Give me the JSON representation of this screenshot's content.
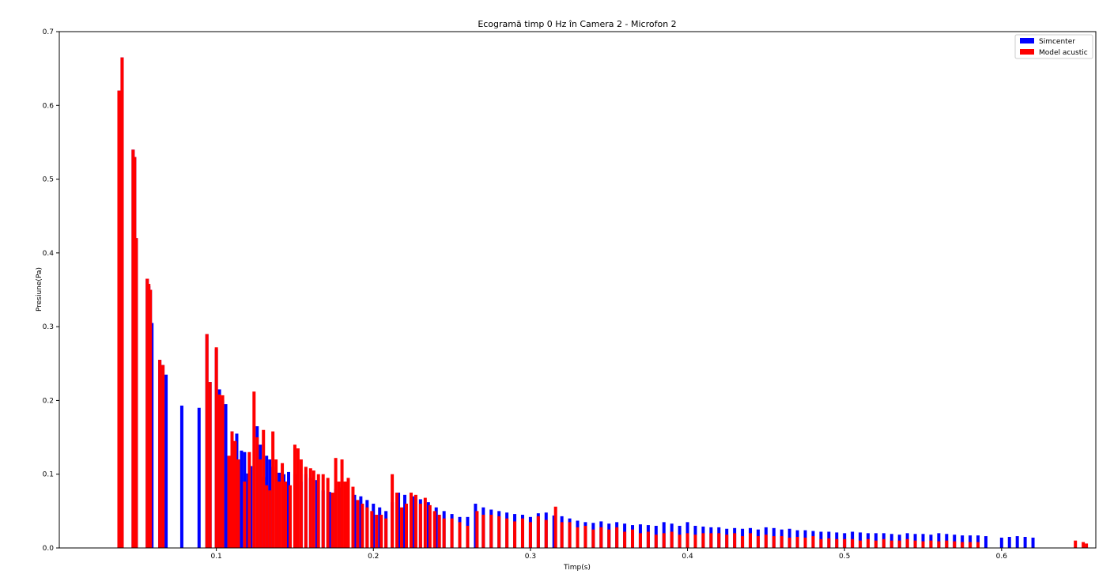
{
  "chart_data": {
    "type": "bar",
    "title": "Ecogramă timp 0 Hz în Camera 2 - Microfon 2",
    "xlabel": "Timp(s)",
    "ylabel": "Presiune(Pa)",
    "xlim": [
      0.0,
      0.66
    ],
    "ylim": [
      0.0,
      0.7
    ],
    "xticks": [
      "0.1",
      "0.2",
      "0.3",
      "0.4",
      "0.5",
      "0.6"
    ],
    "yticks": [
      "0.0",
      "0.1",
      "0.2",
      "0.3",
      "0.4",
      "0.5",
      "0.6",
      "0.7"
    ],
    "grid": false,
    "legend_position": "top-right",
    "series": [
      {
        "name": "Simcenter",
        "color": "#0000ff",
        "points": [
          [
            0.038,
            0.62
          ],
          [
            0.04,
            0.665
          ],
          [
            0.047,
            0.54
          ],
          [
            0.048,
            0.53
          ],
          [
            0.049,
            0.42
          ],
          [
            0.056,
            0.365
          ],
          [
            0.057,
            0.355
          ],
          [
            0.058,
            0.35
          ],
          [
            0.059,
            0.305
          ],
          [
            0.064,
            0.255
          ],
          [
            0.066,
            0.248
          ],
          [
            0.068,
            0.235
          ],
          [
            0.078,
            0.193
          ],
          [
            0.089,
            0.19
          ],
          [
            0.094,
            0.29
          ],
          [
            0.096,
            0.225
          ],
          [
            0.1,
            0.27
          ],
          [
            0.102,
            0.215
          ],
          [
            0.104,
            0.2
          ],
          [
            0.106,
            0.195
          ],
          [
            0.11,
            0.158
          ],
          [
            0.113,
            0.155
          ],
          [
            0.116,
            0.132
          ],
          [
            0.118,
            0.13
          ],
          [
            0.12,
            0.101
          ],
          [
            0.122,
            0.111
          ],
          [
            0.126,
            0.165
          ],
          [
            0.128,
            0.14
          ],
          [
            0.13,
            0.096
          ],
          [
            0.132,
            0.125
          ],
          [
            0.134,
            0.12
          ],
          [
            0.136,
            0.11
          ],
          [
            0.14,
            0.102
          ],
          [
            0.143,
            0.1
          ],
          [
            0.146,
            0.103
          ],
          [
            0.15,
            0.1
          ],
          [
            0.154,
            0.09
          ],
          [
            0.157,
            0.1
          ],
          [
            0.16,
            0.095
          ],
          [
            0.164,
            0.092
          ],
          [
            0.168,
            0.078
          ],
          [
            0.172,
            0.076
          ],
          [
            0.176,
            0.08
          ],
          [
            0.18,
            0.082
          ],
          [
            0.184,
            0.078
          ],
          [
            0.188,
            0.072
          ],
          [
            0.192,
            0.07
          ],
          [
            0.196,
            0.065
          ],
          [
            0.2,
            0.06
          ],
          [
            0.204,
            0.055
          ],
          [
            0.208,
            0.05
          ],
          [
            0.212,
            0.062
          ],
          [
            0.216,
            0.075
          ],
          [
            0.22,
            0.072
          ],
          [
            0.225,
            0.07
          ],
          [
            0.23,
            0.066
          ],
          [
            0.235,
            0.062
          ],
          [
            0.24,
            0.055
          ],
          [
            0.245,
            0.05
          ],
          [
            0.25,
            0.046
          ],
          [
            0.255,
            0.042
          ],
          [
            0.26,
            0.042
          ],
          [
            0.265,
            0.06
          ],
          [
            0.27,
            0.055
          ],
          [
            0.275,
            0.052
          ],
          [
            0.28,
            0.05
          ],
          [
            0.285,
            0.048
          ],
          [
            0.29,
            0.046
          ],
          [
            0.295,
            0.045
          ],
          [
            0.3,
            0.042
          ],
          [
            0.305,
            0.047
          ],
          [
            0.31,
            0.048
          ],
          [
            0.315,
            0.044
          ],
          [
            0.32,
            0.043
          ],
          [
            0.325,
            0.04
          ],
          [
            0.33,
            0.037
          ],
          [
            0.335,
            0.035
          ],
          [
            0.34,
            0.034
          ],
          [
            0.345,
            0.036
          ],
          [
            0.35,
            0.033
          ],
          [
            0.355,
            0.035
          ],
          [
            0.36,
            0.033
          ],
          [
            0.365,
            0.031
          ],
          [
            0.37,
            0.032
          ],
          [
            0.375,
            0.031
          ],
          [
            0.38,
            0.03
          ],
          [
            0.385,
            0.035
          ],
          [
            0.39,
            0.033
          ],
          [
            0.395,
            0.03
          ],
          [
            0.4,
            0.035
          ],
          [
            0.405,
            0.03
          ],
          [
            0.41,
            0.029
          ],
          [
            0.415,
            0.028
          ],
          [
            0.42,
            0.028
          ],
          [
            0.425,
            0.026
          ],
          [
            0.43,
            0.027
          ],
          [
            0.435,
            0.026
          ],
          [
            0.44,
            0.027
          ],
          [
            0.445,
            0.025
          ],
          [
            0.45,
            0.028
          ],
          [
            0.455,
            0.027
          ],
          [
            0.46,
            0.025
          ],
          [
            0.465,
            0.026
          ],
          [
            0.47,
            0.024
          ],
          [
            0.475,
            0.024
          ],
          [
            0.48,
            0.023
          ],
          [
            0.485,
            0.022
          ],
          [
            0.49,
            0.022
          ],
          [
            0.495,
            0.021
          ],
          [
            0.5,
            0.02
          ],
          [
            0.505,
            0.022
          ],
          [
            0.51,
            0.021
          ],
          [
            0.515,
            0.02
          ],
          [
            0.52,
            0.02
          ],
          [
            0.525,
            0.02
          ],
          [
            0.53,
            0.019
          ],
          [
            0.535,
            0.018
          ],
          [
            0.54,
            0.02
          ],
          [
            0.545,
            0.019
          ],
          [
            0.55,
            0.019
          ],
          [
            0.555,
            0.018
          ],
          [
            0.56,
            0.02
          ],
          [
            0.565,
            0.019
          ],
          [
            0.57,
            0.018
          ],
          [
            0.575,
            0.017
          ],
          [
            0.58,
            0.017
          ],
          [
            0.585,
            0.017
          ],
          [
            0.59,
            0.016
          ],
          [
            0.6,
            0.014
          ],
          [
            0.605,
            0.015
          ],
          [
            0.61,
            0.016
          ],
          [
            0.615,
            0.015
          ],
          [
            0.62,
            0.014
          ]
        ]
      },
      {
        "name": "Model acustic",
        "color": "#ff0000",
        "points": [
          [
            0.038,
            0.62
          ],
          [
            0.04,
            0.665
          ],
          [
            0.047,
            0.54
          ],
          [
            0.048,
            0.53
          ],
          [
            0.049,
            0.42
          ],
          [
            0.056,
            0.365
          ],
          [
            0.057,
            0.358
          ],
          [
            0.058,
            0.35
          ],
          [
            0.064,
            0.255
          ],
          [
            0.066,
            0.248
          ],
          [
            0.094,
            0.29
          ],
          [
            0.096,
            0.225
          ],
          [
            0.1,
            0.272
          ],
          [
            0.102,
            0.208
          ],
          [
            0.104,
            0.207
          ],
          [
            0.108,
            0.125
          ],
          [
            0.11,
            0.158
          ],
          [
            0.112,
            0.145
          ],
          [
            0.114,
            0.12
          ],
          [
            0.118,
            0.09
          ],
          [
            0.121,
            0.13
          ],
          [
            0.124,
            0.212
          ],
          [
            0.126,
            0.15
          ],
          [
            0.128,
            0.12
          ],
          [
            0.13,
            0.16
          ],
          [
            0.132,
            0.085
          ],
          [
            0.134,
            0.078
          ],
          [
            0.136,
            0.158
          ],
          [
            0.138,
            0.12
          ],
          [
            0.14,
            0.09
          ],
          [
            0.142,
            0.115
          ],
          [
            0.144,
            0.09
          ],
          [
            0.147,
            0.085
          ],
          [
            0.15,
            0.14
          ],
          [
            0.152,
            0.135
          ],
          [
            0.154,
            0.12
          ],
          [
            0.157,
            0.11
          ],
          [
            0.16,
            0.108
          ],
          [
            0.162,
            0.105
          ],
          [
            0.165,
            0.1
          ],
          [
            0.168,
            0.1
          ],
          [
            0.171,
            0.095
          ],
          [
            0.174,
            0.075
          ],
          [
            0.176,
            0.122
          ],
          [
            0.178,
            0.09
          ],
          [
            0.18,
            0.12
          ],
          [
            0.182,
            0.09
          ],
          [
            0.184,
            0.095
          ],
          [
            0.187,
            0.083
          ],
          [
            0.19,
            0.065
          ],
          [
            0.193,
            0.06
          ],
          [
            0.196,
            0.055
          ],
          [
            0.199,
            0.05
          ],
          [
            0.202,
            0.045
          ],
          [
            0.205,
            0.045
          ],
          [
            0.208,
            0.04
          ],
          [
            0.212,
            0.1
          ],
          [
            0.215,
            0.075
          ],
          [
            0.218,
            0.055
          ],
          [
            0.221,
            0.06
          ],
          [
            0.224,
            0.075
          ],
          [
            0.227,
            0.072
          ],
          [
            0.23,
            0.06
          ],
          [
            0.233,
            0.068
          ],
          [
            0.236,
            0.058
          ],
          [
            0.239,
            0.05
          ],
          [
            0.242,
            0.045
          ],
          [
            0.245,
            0.04
          ],
          [
            0.25,
            0.04
          ],
          [
            0.255,
            0.035
          ],
          [
            0.26,
            0.03
          ],
          [
            0.266,
            0.05
          ],
          [
            0.27,
            0.045
          ],
          [
            0.275,
            0.045
          ],
          [
            0.28,
            0.043
          ],
          [
            0.285,
            0.04
          ],
          [
            0.29,
            0.036
          ],
          [
            0.295,
            0.04
          ],
          [
            0.3,
            0.035
          ],
          [
            0.305,
            0.043
          ],
          [
            0.31,
            0.038
          ],
          [
            0.316,
            0.056
          ],
          [
            0.32,
            0.035
          ],
          [
            0.325,
            0.035
          ],
          [
            0.33,
            0.028
          ],
          [
            0.335,
            0.03
          ],
          [
            0.34,
            0.025
          ],
          [
            0.345,
            0.028
          ],
          [
            0.35,
            0.025
          ],
          [
            0.355,
            0.028
          ],
          [
            0.36,
            0.022
          ],
          [
            0.365,
            0.025
          ],
          [
            0.37,
            0.02
          ],
          [
            0.375,
            0.022
          ],
          [
            0.38,
            0.018
          ],
          [
            0.385,
            0.02
          ],
          [
            0.39,
            0.022
          ],
          [
            0.395,
            0.018
          ],
          [
            0.4,
            0.02
          ],
          [
            0.405,
            0.018
          ],
          [
            0.41,
            0.02
          ],
          [
            0.415,
            0.02
          ],
          [
            0.42,
            0.02
          ],
          [
            0.425,
            0.018
          ],
          [
            0.43,
            0.02
          ],
          [
            0.435,
            0.016
          ],
          [
            0.44,
            0.02
          ],
          [
            0.445,
            0.016
          ],
          [
            0.45,
            0.018
          ],
          [
            0.455,
            0.016
          ],
          [
            0.46,
            0.016
          ],
          [
            0.465,
            0.014
          ],
          [
            0.47,
            0.015
          ],
          [
            0.475,
            0.014
          ],
          [
            0.48,
            0.016
          ],
          [
            0.485,
            0.012
          ],
          [
            0.49,
            0.013
          ],
          [
            0.495,
            0.012
          ],
          [
            0.5,
            0.012
          ],
          [
            0.505,
            0.012
          ],
          [
            0.51,
            0.01
          ],
          [
            0.515,
            0.012
          ],
          [
            0.52,
            0.01
          ],
          [
            0.525,
            0.012
          ],
          [
            0.53,
            0.01
          ],
          [
            0.535,
            0.01
          ],
          [
            0.54,
            0.012
          ],
          [
            0.545,
            0.01
          ],
          [
            0.55,
            0.009
          ],
          [
            0.555,
            0.01
          ],
          [
            0.56,
            0.009
          ],
          [
            0.565,
            0.01
          ],
          [
            0.57,
            0.009
          ],
          [
            0.575,
            0.008
          ],
          [
            0.58,
            0.008
          ],
          [
            0.585,
            0.008
          ],
          [
            0.647,
            0.01
          ],
          [
            0.652,
            0.008
          ],
          [
            0.654,
            0.006
          ]
        ]
      }
    ]
  }
}
